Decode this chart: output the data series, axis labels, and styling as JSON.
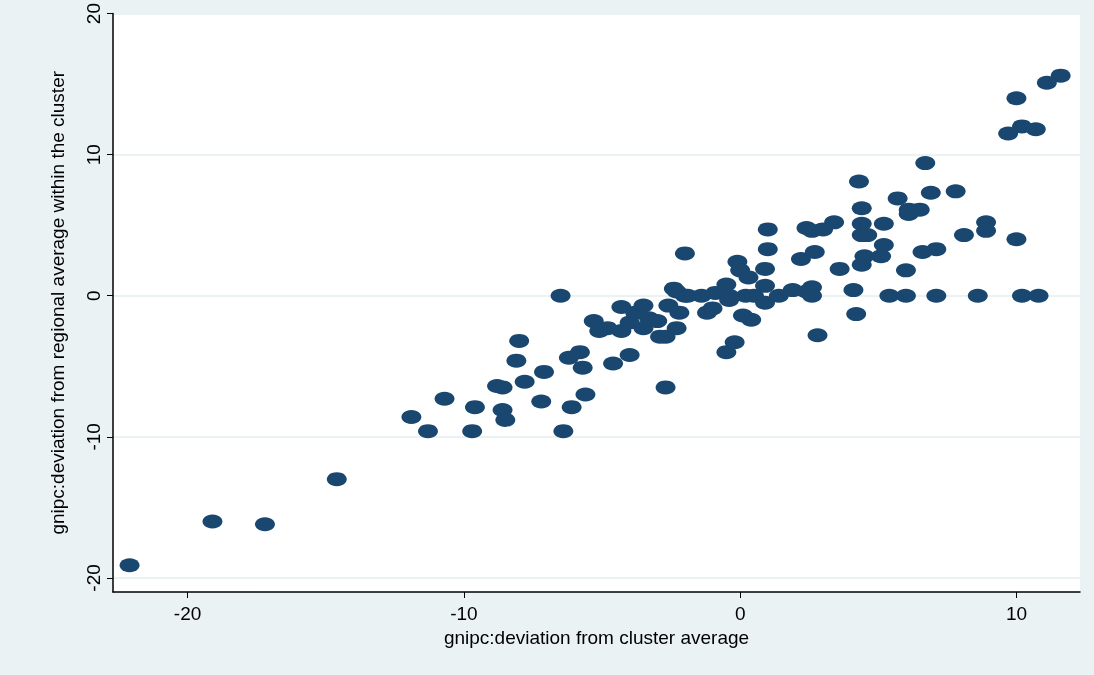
{
  "chart_data": {
    "type": "scatter",
    "xlabel": "gnipc:deviation from cluster average",
    "ylabel": "gnipc:deviation from regional average within the cluster",
    "x": [
      -22.1,
      -19.1,
      -17.2,
      -14.6,
      -11.9,
      -11.3,
      -10.7,
      -9.7,
      -9.6,
      -8.8,
      -8.6,
      -8.6,
      -8.5,
      -8.1,
      -8.0,
      -7.8,
      -7.2,
      -7.1,
      -6.5,
      -6.4,
      -6.2,
      -6.1,
      -5.8,
      -5.7,
      -5.6,
      -5.3,
      -5.1,
      -4.8,
      -4.6,
      -4.3,
      -4.3,
      -4.0,
      -4.0,
      -3.8,
      -3.5,
      -3.5,
      -3.3,
      -3.0,
      -2.9,
      -2.7,
      -2.7,
      -2.6,
      -2.4,
      -2.3,
      -2.2,
      -2.3,
      -2.0,
      -2.0,
      -1.9,
      -1.4,
      -1.2,
      -1.0,
      -0.9,
      -0.5,
      -0.5,
      -0.4,
      -0.4,
      -0.2,
      -0.1,
      0,
      0.3,
      0.1,
      0.4,
      0.2,
      0.5,
      1.0,
      1.0,
      0.9,
      0.9,
      0.9,
      1.4,
      1.9,
      2.4,
      2.6,
      2.6,
      2.8,
      2.2,
      2.7,
      2.4,
      2.6,
      3.0,
      3.4,
      3.6,
      4.1,
      4.2,
      4.3,
      4.4,
      4.4,
      4.4,
      4.6,
      4.5,
      4.4,
      5.2,
      5.2,
      5.1,
      5.7,
      5.4,
      6.0,
      6.0,
      6.1,
      6.1,
      6.5,
      6.7,
      6.6,
      6.9,
      7.1,
      7.1,
      7.8,
      8.1,
      8.6,
      8.9,
      8.9,
      10.0,
      10.2,
      10.8,
      11.6,
      11.1,
      10.0,
      9.7,
      10.2,
      10.7
    ],
    "values": [
      -19.1,
      -16.0,
      -16.2,
      -13.0,
      -8.6,
      -9.6,
      -7.3,
      -9.6,
      -7.9,
      -6.4,
      -6.5,
      -8.1,
      -8.8,
      -4.6,
      -3.2,
      -6.1,
      -7.5,
      -5.4,
      0,
      -9.6,
      -4.4,
      -7.9,
      -4.0,
      -5.1,
      -7.0,
      -1.8,
      -2.5,
      -2.3,
      -4.8,
      -0.8,
      -2.5,
      -1.9,
      -4.2,
      -1.2,
      -0.7,
      -2.3,
      -1.6,
      -1.8,
      -2.9,
      -2.9,
      -6.5,
      -0.7,
      0.5,
      0.3,
      -1.2,
      -2.3,
      3.0,
      0,
      0,
      0,
      -1.2,
      -0.9,
      0.2,
      0.8,
      -4.0,
      0,
      -0.3,
      -3.3,
      2.4,
      1.8,
      1.3,
      -1.4,
      -1.7,
      0,
      0,
      4.7,
      3.3,
      1.9,
      -0.5,
      0.7,
      0,
      0.4,
      0.3,
      0.6,
      0,
      -2.8,
      2.6,
      3.1,
      4.8,
      4.6,
      4.7,
      5.2,
      1.9,
      0.4,
      -1.3,
      8.1,
      6.2,
      5.1,
      4.3,
      4.3,
      2.8,
      2.2,
      5.1,
      3.6,
      2.8,
      6.9,
      0,
      0,
      1.8,
      6.1,
      5.8,
      6.1,
      9.4,
      3.1,
      7.3,
      3.3,
      0,
      7.4,
      4.3,
      0,
      5.2,
      4.6,
      4.0,
      0,
      0,
      15.6,
      15.1,
      14.0,
      11.5,
      12.0,
      11.8
    ],
    "color": "#1a476f",
    "marker": "circle",
    "grid": "y",
    "xlim": [
      -22.7,
      12.3
    ],
    "xticks": [
      -20,
      -10,
      0,
      10
    ],
    "ylim": [
      -21,
      20
    ],
    "yticks": [
      -20,
      -10,
      0,
      10,
      20
    ]
  }
}
